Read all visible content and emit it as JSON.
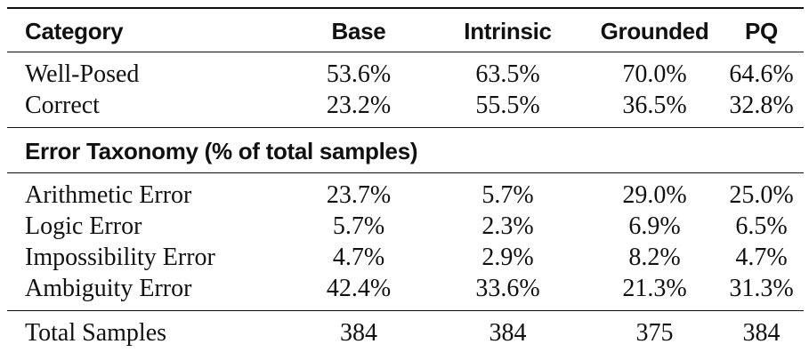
{
  "table": {
    "columns": [
      "Category",
      "Base",
      "Intrinsic",
      "Grounded",
      "PQ"
    ],
    "sections": [
      {
        "rows": [
          {
            "label": "Well-Posed",
            "values": [
              "53.6%",
              "63.5%",
              "70.0%",
              "64.6%"
            ]
          },
          {
            "label": "Correct",
            "values": [
              "23.2%",
              "55.5%",
              "36.5%",
              "32.8%"
            ]
          }
        ]
      },
      {
        "header": "Error Taxonomy (% of total samples)",
        "rows": [
          {
            "label": "Arithmetic Error",
            "values": [
              "23.7%",
              "5.7%",
              "29.0%",
              "25.0%"
            ]
          },
          {
            "label": "Logic Error",
            "values": [
              "5.7%",
              "2.3%",
              "6.9%",
              "6.5%"
            ]
          },
          {
            "label": "Impossibility Error",
            "values": [
              "4.7%",
              "2.9%",
              "8.2%",
              "4.7%"
            ]
          },
          {
            "label": "Ambiguity Error",
            "values": [
              "42.4%",
              "33.6%",
              "21.3%",
              "31.3%"
            ]
          }
        ]
      }
    ],
    "footer": {
      "label": "Total Samples",
      "values": [
        "384",
        "384",
        "375",
        "384"
      ]
    }
  }
}
